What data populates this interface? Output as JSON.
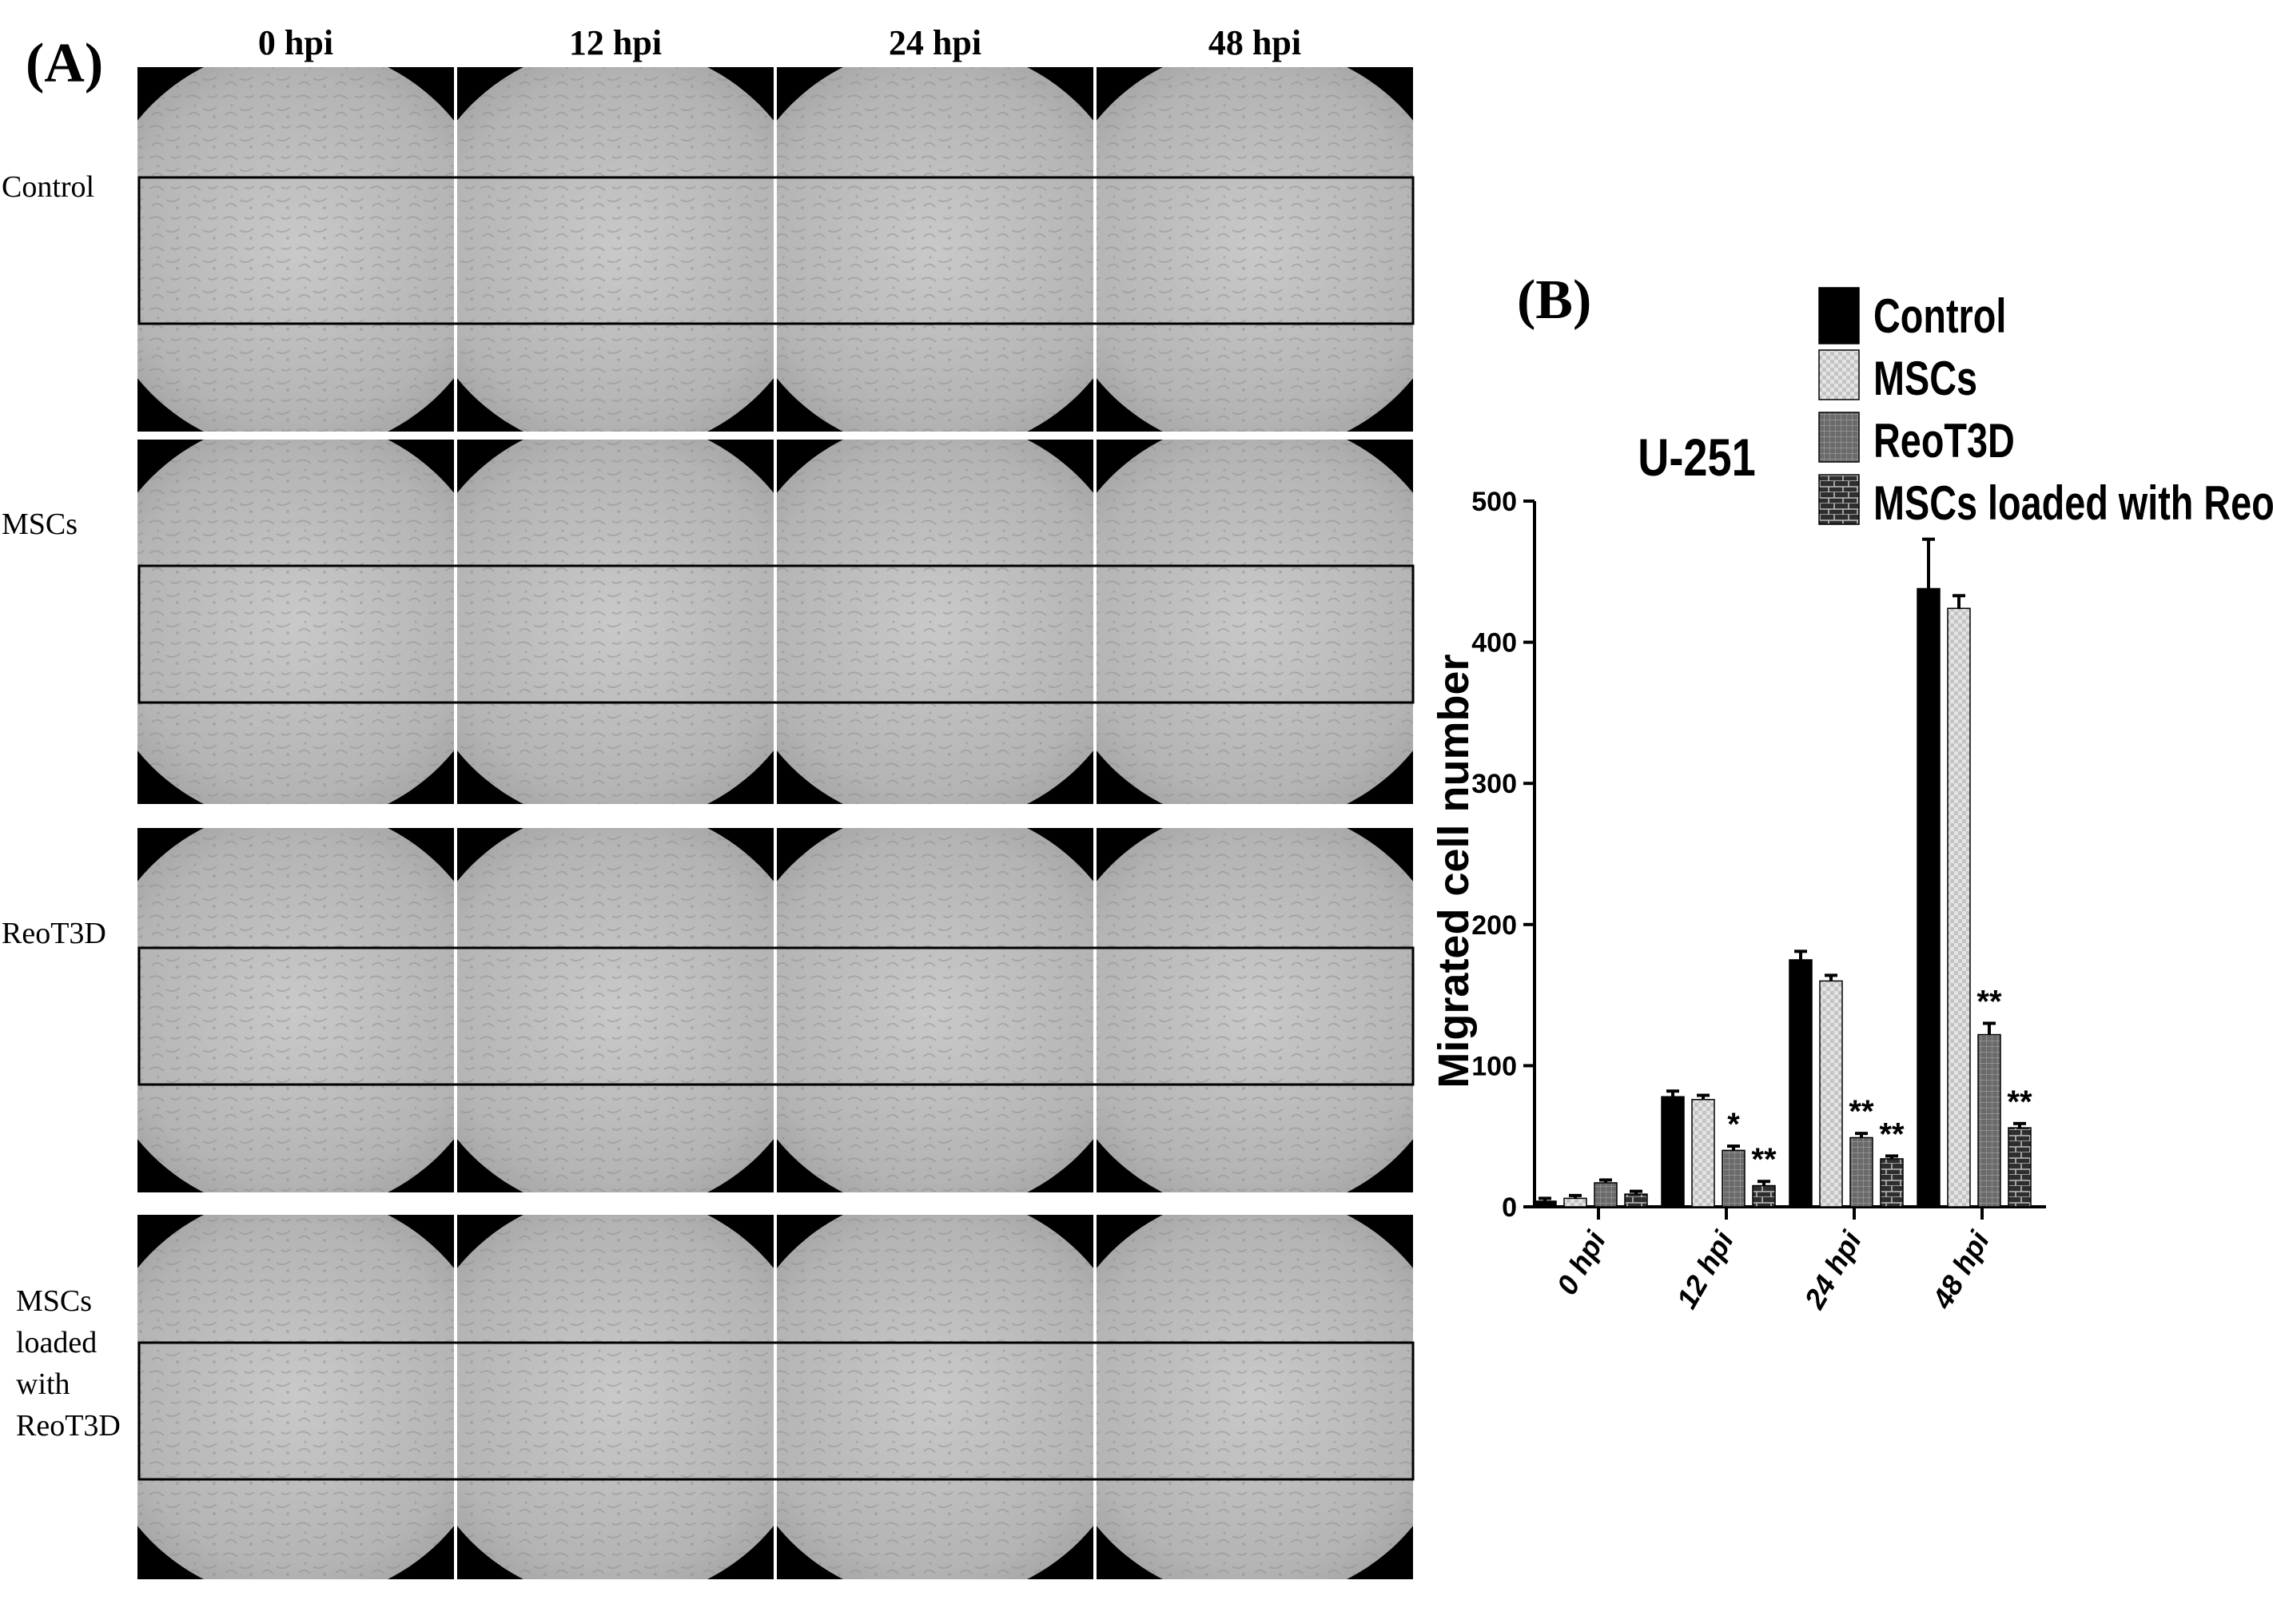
{
  "panel_a": {
    "label": "(A)",
    "columns": [
      "0  hpi",
      "12 hpi",
      "24 hpi",
      "48 hpi"
    ],
    "rows": [
      [
        "Control"
      ],
      [
        "MSCs"
      ],
      [
        "ReoT3D"
      ],
      [
        "MSCs",
        "loaded",
        "with",
        "ReoT3D"
      ]
    ]
  },
  "panel_b": {
    "label": "(B)",
    "chart_data": {
      "type": "bar",
      "title": "U-251",
      "ylabel": "Migrated cell number",
      "xlabel": "",
      "ylim": [
        0,
        500
      ],
      "yticks": [
        0,
        100,
        200,
        300,
        400,
        500
      ],
      "categories": [
        "0 hpi",
        "12 hpi",
        "24 hpi",
        "48 hpi"
      ],
      "legend_position": "top-right",
      "series": [
        {
          "name": "Control",
          "color": "#000000",
          "pattern": "solid",
          "values": [
            4,
            78,
            175,
            438
          ],
          "errors": [
            2,
            4,
            6,
            35
          ]
        },
        {
          "name": "MSCs",
          "color": "#dcdcdc",
          "pattern": "checker",
          "values": [
            6,
            76,
            160,
            424
          ],
          "errors": [
            2,
            3,
            4,
            9
          ]
        },
        {
          "name": "ReoT3D",
          "color": "#6a6a6a",
          "pattern": "grid",
          "values": [
            17,
            40,
            49,
            122
          ],
          "errors": [
            2,
            3,
            3,
            8
          ]
        },
        {
          "name": "MSCs loaded with ReoT3D",
          "color": "#3a3a3a",
          "pattern": "brick",
          "values": [
            9,
            15,
            34,
            56
          ],
          "errors": [
            2,
            3,
            2,
            3
          ]
        }
      ],
      "annotations": [
        {
          "category": "12 hpi",
          "series": "ReoT3D",
          "text": "*"
        },
        {
          "category": "12 hpi",
          "series": "MSCs loaded with ReoT3D",
          "text": "**"
        },
        {
          "category": "24 hpi",
          "series": "ReoT3D",
          "text": "**"
        },
        {
          "category": "24 hpi",
          "series": "MSCs loaded with ReoT3D",
          "text": "**"
        },
        {
          "category": "48 hpi",
          "series": "ReoT3D",
          "text": "**"
        },
        {
          "category": "48 hpi",
          "series": "MSCs loaded with ReoT3D",
          "text": "**"
        }
      ]
    }
  }
}
